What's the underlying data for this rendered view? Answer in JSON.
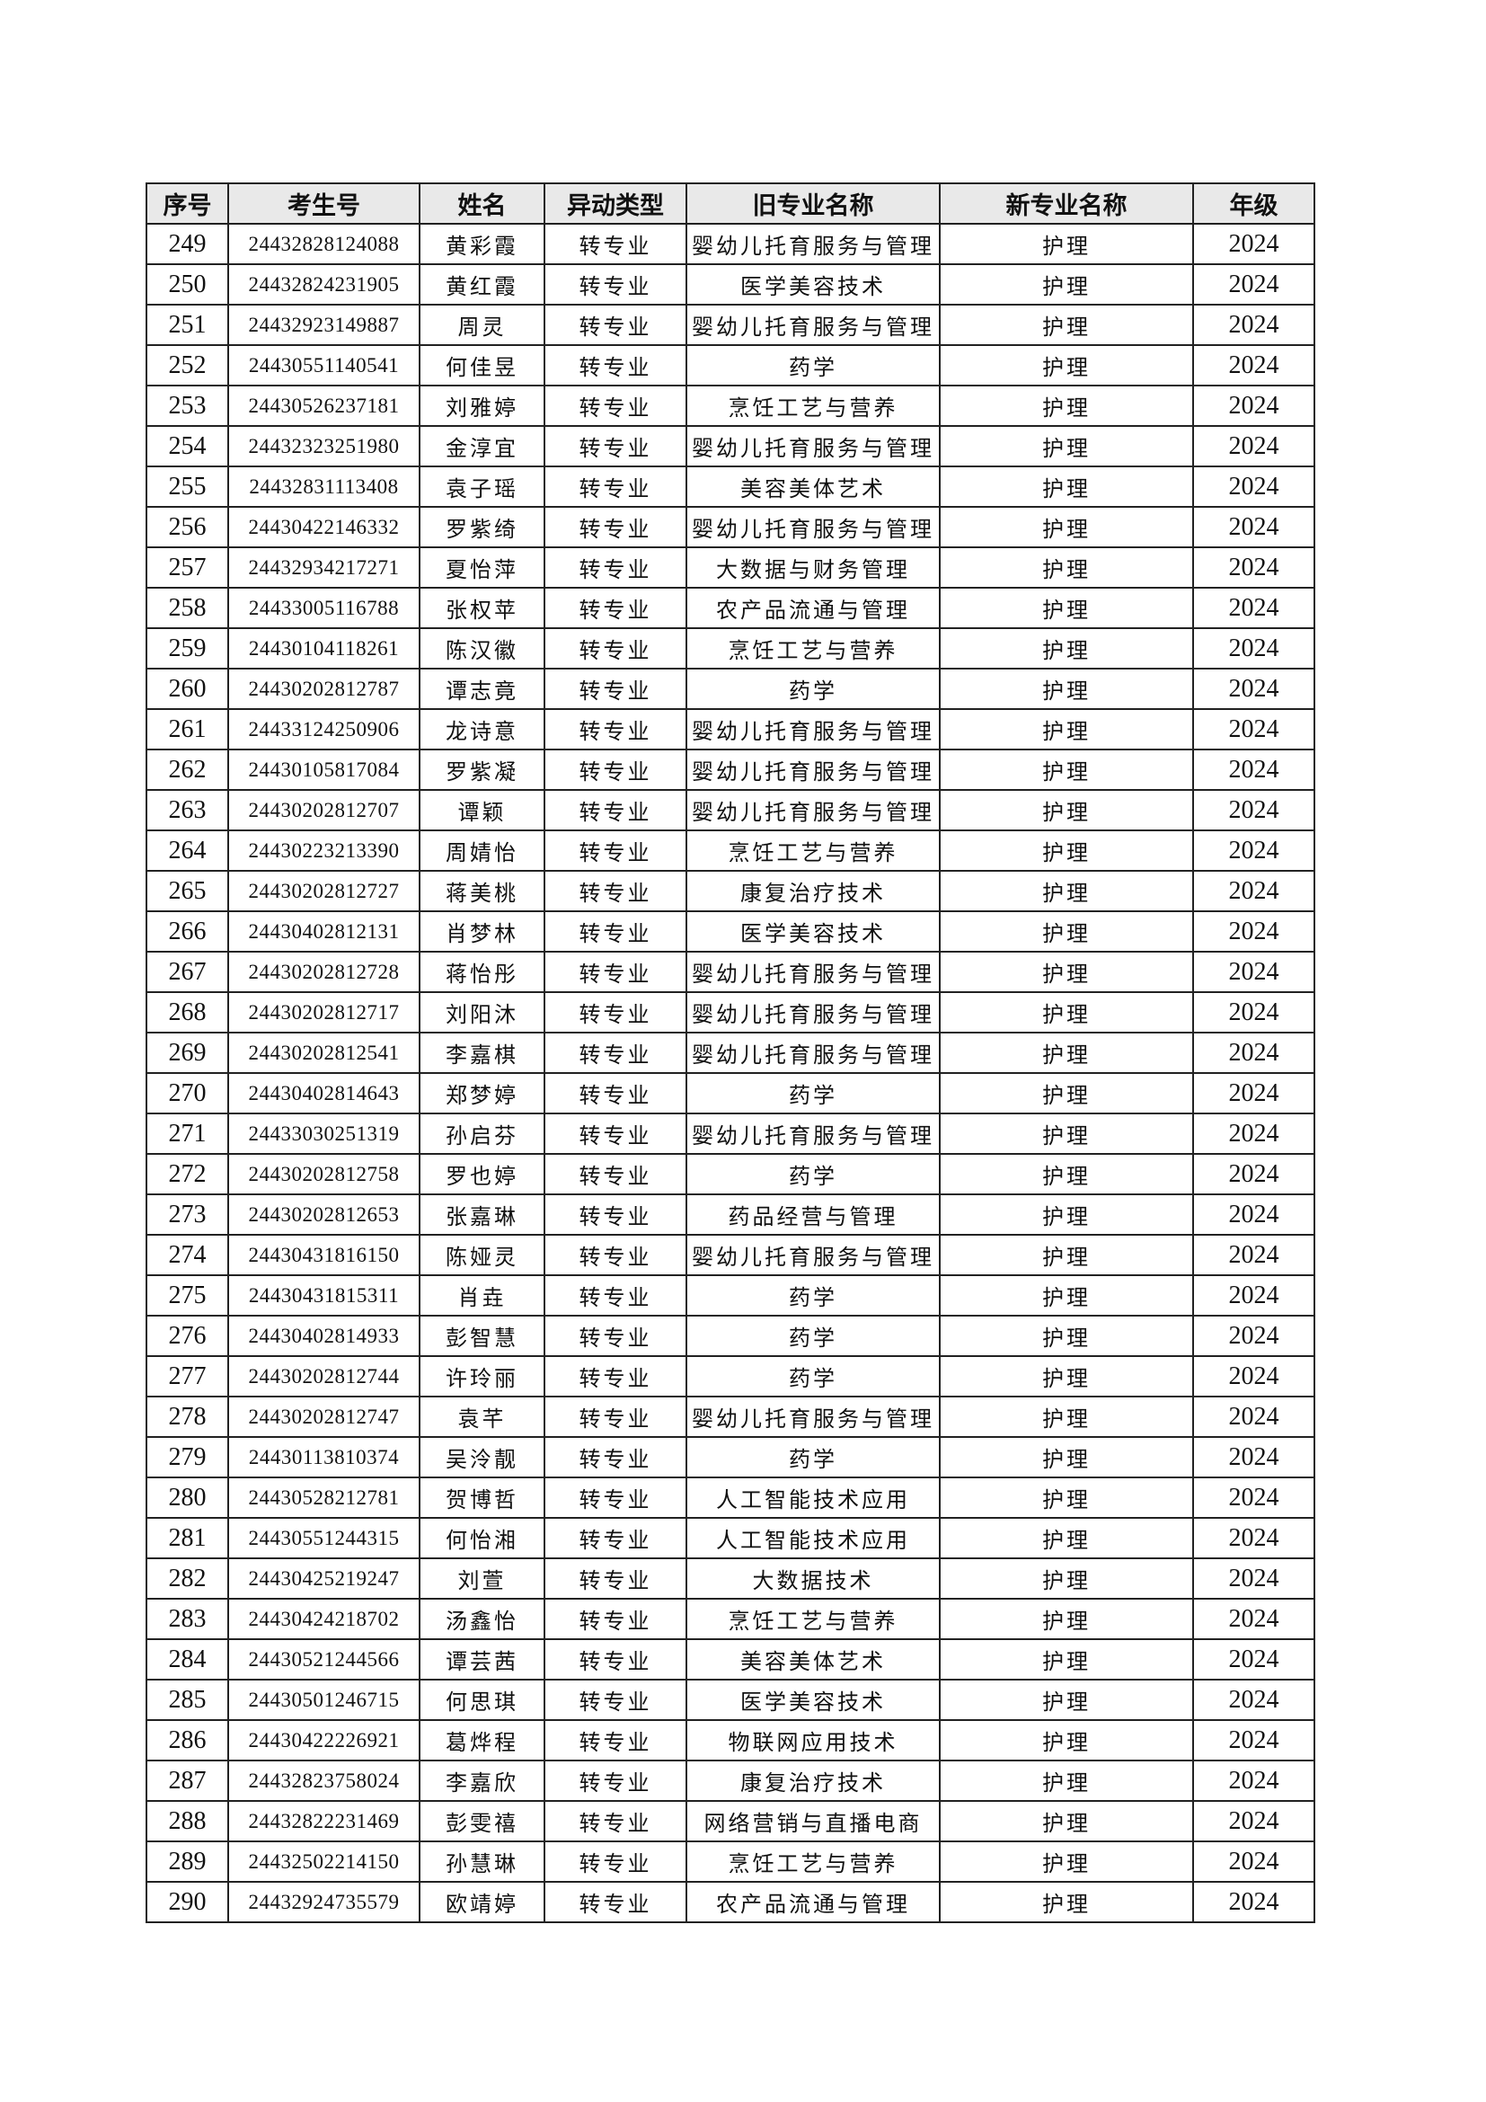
{
  "table": {
    "headers": [
      "序号",
      "考生号",
      "姓名",
      "异动类型",
      "旧专业名称",
      "新专业名称",
      "年级"
    ],
    "rows": [
      [
        "249",
        "24432828124088",
        "黄彩霞",
        "转专业",
        "婴幼儿托育服务与管理",
        "护理",
        "2024"
      ],
      [
        "250",
        "24432824231905",
        "黄红霞",
        "转专业",
        "医学美容技术",
        "护理",
        "2024"
      ],
      [
        "251",
        "24432923149887",
        "周灵",
        "转专业",
        "婴幼儿托育服务与管理",
        "护理",
        "2024"
      ],
      [
        "252",
        "24430551140541",
        "何佳昱",
        "转专业",
        "药学",
        "护理",
        "2024"
      ],
      [
        "253",
        "24430526237181",
        "刘雅婷",
        "转专业",
        "烹饪工艺与营养",
        "护理",
        "2024"
      ],
      [
        "254",
        "24432323251980",
        "金淳宜",
        "转专业",
        "婴幼儿托育服务与管理",
        "护理",
        "2024"
      ],
      [
        "255",
        "24432831113408",
        "袁子瑶",
        "转专业",
        "美容美体艺术",
        "护理",
        "2024"
      ],
      [
        "256",
        "24430422146332",
        "罗紫绮",
        "转专业",
        "婴幼儿托育服务与管理",
        "护理",
        "2024"
      ],
      [
        "257",
        "24432934217271",
        "夏怡萍",
        "转专业",
        "大数据与财务管理",
        "护理",
        "2024"
      ],
      [
        "258",
        "24433005116788",
        "张权苹",
        "转专业",
        "农产品流通与管理",
        "护理",
        "2024"
      ],
      [
        "259",
        "24430104118261",
        "陈汉徽",
        "转专业",
        "烹饪工艺与营养",
        "护理",
        "2024"
      ],
      [
        "260",
        "24430202812787",
        "谭志竟",
        "转专业",
        "药学",
        "护理",
        "2024"
      ],
      [
        "261",
        "24433124250906",
        "龙诗意",
        "转专业",
        "婴幼儿托育服务与管理",
        "护理",
        "2024"
      ],
      [
        "262",
        "24430105817084",
        "罗紫凝",
        "转专业",
        "婴幼儿托育服务与管理",
        "护理",
        "2024"
      ],
      [
        "263",
        "24430202812707",
        "谭颖",
        "转专业",
        "婴幼儿托育服务与管理",
        "护理",
        "2024"
      ],
      [
        "264",
        "24430223213390",
        "周婧怡",
        "转专业",
        "烹饪工艺与营养",
        "护理",
        "2024"
      ],
      [
        "265",
        "24430202812727",
        "蒋美桃",
        "转专业",
        "康复治疗技术",
        "护理",
        "2024"
      ],
      [
        "266",
        "24430402812131",
        "肖梦林",
        "转专业",
        "医学美容技术",
        "护理",
        "2024"
      ],
      [
        "267",
        "24430202812728",
        "蒋怡彤",
        "转专业",
        "婴幼儿托育服务与管理",
        "护理",
        "2024"
      ],
      [
        "268",
        "24430202812717",
        "刘阳沐",
        "转专业",
        "婴幼儿托育服务与管理",
        "护理",
        "2024"
      ],
      [
        "269",
        "24430202812541",
        "李嘉棋",
        "转专业",
        "婴幼儿托育服务与管理",
        "护理",
        "2024"
      ],
      [
        "270",
        "24430402814643",
        "郑梦婷",
        "转专业",
        "药学",
        "护理",
        "2024"
      ],
      [
        "271",
        "24433030251319",
        "孙启芬",
        "转专业",
        "婴幼儿托育服务与管理",
        "护理",
        "2024"
      ],
      [
        "272",
        "24430202812758",
        "罗也婷",
        "转专业",
        "药学",
        "护理",
        "2024"
      ],
      [
        "273",
        "24430202812653",
        "张嘉琳",
        "转专业",
        "药品经营与管理",
        "护理",
        "2024"
      ],
      [
        "274",
        "24430431816150",
        "陈娅灵",
        "转专业",
        "婴幼儿托育服务与管理",
        "护理",
        "2024"
      ],
      [
        "275",
        "24430431815311",
        "肖垚",
        "转专业",
        "药学",
        "护理",
        "2024"
      ],
      [
        "276",
        "24430402814933",
        "彭智慧",
        "转专业",
        "药学",
        "护理",
        "2024"
      ],
      [
        "277",
        "24430202812744",
        "许玲丽",
        "转专业",
        "药学",
        "护理",
        "2024"
      ],
      [
        "278",
        "24430202812747",
        "袁芊",
        "转专业",
        "婴幼儿托育服务与管理",
        "护理",
        "2024"
      ],
      [
        "279",
        "24430113810374",
        "吴泠靓",
        "转专业",
        "药学",
        "护理",
        "2024"
      ],
      [
        "280",
        "24430528212781",
        "贺博哲",
        "转专业",
        "人工智能技术应用",
        "护理",
        "2024"
      ],
      [
        "281",
        "24430551244315",
        "何怡湘",
        "转专业",
        "人工智能技术应用",
        "护理",
        "2024"
      ],
      [
        "282",
        "24430425219247",
        "刘萱",
        "转专业",
        "大数据技术",
        "护理",
        "2024"
      ],
      [
        "283",
        "24430424218702",
        "汤鑫怡",
        "转专业",
        "烹饪工艺与营养",
        "护理",
        "2024"
      ],
      [
        "284",
        "24430521244566",
        "谭芸茜",
        "转专业",
        "美容美体艺术",
        "护理",
        "2024"
      ],
      [
        "285",
        "24430501246715",
        "何思琪",
        "转专业",
        "医学美容技术",
        "护理",
        "2024"
      ],
      [
        "286",
        "24430422226921",
        "葛烨程",
        "转专业",
        "物联网应用技术",
        "护理",
        "2024"
      ],
      [
        "287",
        "24432823758024",
        "李嘉欣",
        "转专业",
        "康复治疗技术",
        "护理",
        "2024"
      ],
      [
        "288",
        "24432822231469",
        "彭雯禧",
        "转专业",
        "网络营销与直播电商",
        "护理",
        "2024"
      ],
      [
        "289",
        "24432502214150",
        "孙慧琳",
        "转专业",
        "烹饪工艺与营养",
        "护理",
        "2024"
      ],
      [
        "290",
        "24432924735579",
        "欧靖婷",
        "转专业",
        "农产品流通与管理",
        "护理",
        "2024"
      ]
    ]
  }
}
